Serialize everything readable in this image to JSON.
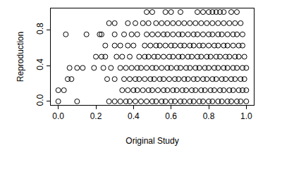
{
  "chart_data": {
    "type": "scatter",
    "x_label": "Original Study",
    "y_label": "Reproduction",
    "color": "#000000",
    "marker": "open circle",
    "grid": false,
    "xlim": [
      -0.04,
      1.04
    ],
    "ylim": [
      -0.04,
      1.04
    ],
    "xticks": [
      {
        "value": 0,
        "label": "0.0"
      },
      {
        "value": 0.2,
        "label": "0.2"
      },
      {
        "value": 0.4,
        "label": "0.4"
      },
      {
        "value": 0.6,
        "label": "0.6"
      },
      {
        "value": 0.8,
        "label": "0.8"
      },
      {
        "value": 1,
        "label": "1.0"
      }
    ],
    "yticks": [
      {
        "value": 0,
        "label": "0.0"
      },
      {
        "value": 0.4,
        "label": "0.4"
      },
      {
        "value": 0.8,
        "label": "0.8"
      }
    ],
    "x": [
      0,
      0.1,
      0.27,
      0.3,
      0.33,
      0.36,
      0.38,
      0.41,
      0.44,
      0.47,
      0.5,
      0.52,
      0.55,
      0.57,
      0.6,
      0.62,
      0.65,
      0.67,
      0.7,
      0.72,
      0.75,
      0.77,
      0.8,
      0.82,
      0.85,
      0.87,
      0.9,
      0.92,
      0.95,
      0.97,
      1.0,
      0,
      0.03,
      0.34,
      0.37,
      0.4,
      0.42,
      0.45,
      0.48,
      0.5,
      0.53,
      0.56,
      0.58,
      0.61,
      0.63,
      0.66,
      0.68,
      0.71,
      0.73,
      0.76,
      0.78,
      0.81,
      0.83,
      0.86,
      0.88,
      0.91,
      0.93,
      0.96,
      0.98,
      1.0,
      0.05,
      0.07,
      0.26,
      0.3,
      0.35,
      0.38,
      0.41,
      0.43,
      0.46,
      0.49,
      0.51,
      0.54,
      0.56,
      0.59,
      0.62,
      0.64,
      0.67,
      0.69,
      0.72,
      0.74,
      0.77,
      0.79,
      0.82,
      0.84,
      0.87,
      0.89,
      0.92,
      0.94,
      0.97,
      0.99,
      0.06,
      0.1,
      0.13,
      0.19,
      0.24,
      0.28,
      0.33,
      0.36,
      0.39,
      0.42,
      0.44,
      0.47,
      0.5,
      0.52,
      0.55,
      0.58,
      0.6,
      0.63,
      0.65,
      0.68,
      0.7,
      0.73,
      0.75,
      0.78,
      0.8,
      0.83,
      0.85,
      0.88,
      0.9,
      0.93,
      0.95,
      0.98,
      1.0,
      0.2,
      0.23,
      0.25,
      0.31,
      0.34,
      0.38,
      0.43,
      0.46,
      0.48,
      0.51,
      0.53,
      0.56,
      0.59,
      0.61,
      0.64,
      0.66,
      0.69,
      0.71,
      0.74,
      0.76,
      0.79,
      0.81,
      0.84,
      0.86,
      0.89,
      0.91,
      0.94,
      0.96,
      0.99,
      0.25,
      0.3,
      0.33,
      0.37,
      0.4,
      0.46,
      0.49,
      0.52,
      0.54,
      0.57,
      0.6,
      0.62,
      0.65,
      0.67,
      0.7,
      0.72,
      0.75,
      0.77,
      0.8,
      0.83,
      0.85,
      0.88,
      0.9,
      0.93,
      0.96,
      0.98,
      0.04,
      0.15,
      0.22,
      0.23,
      0.3,
      0.35,
      0.39,
      0.42,
      0.47,
      0.5,
      0.53,
      0.56,
      0.58,
      0.61,
      0.64,
      0.66,
      0.69,
      0.72,
      0.74,
      0.77,
      0.8,
      0.82,
      0.85,
      0.87,
      0.9,
      0.93,
      0.95,
      0.98,
      0.27,
      0.3,
      0.37,
      0.41,
      0.45,
      0.48,
      0.52,
      0.55,
      0.58,
      0.61,
      0.64,
      0.67,
      0.7,
      0.73,
      0.76,
      0.79,
      0.82,
      0.85,
      0.88,
      0.91,
      0.94,
      0.97,
      0.47,
      0.5,
      0.57,
      0.6,
      0.65,
      0.74,
      0.77,
      0.8,
      0.82,
      0.84,
      0.86,
      0.88,
      0.92,
      0.95
    ],
    "values": [
      0,
      0,
      0,
      0,
      0,
      0,
      0,
      0,
      0,
      0,
      0,
      0,
      0,
      0,
      0,
      0,
      0,
      0,
      0,
      0,
      0,
      0,
      0,
      0,
      0,
      0,
      0,
      0,
      0,
      0,
      0,
      0.125,
      0.125,
      0.125,
      0.125,
      0.125,
      0.125,
      0.125,
      0.125,
      0.125,
      0.125,
      0.125,
      0.125,
      0.125,
      0.125,
      0.125,
      0.125,
      0.125,
      0.125,
      0.125,
      0.125,
      0.125,
      0.125,
      0.125,
      0.125,
      0.125,
      0.125,
      0.125,
      0.125,
      0.125,
      0.25,
      0.25,
      0.25,
      0.25,
      0.25,
      0.25,
      0.25,
      0.25,
      0.25,
      0.25,
      0.25,
      0.25,
      0.25,
      0.25,
      0.25,
      0.25,
      0.25,
      0.25,
      0.25,
      0.25,
      0.25,
      0.25,
      0.25,
      0.25,
      0.25,
      0.25,
      0.25,
      0.25,
      0.25,
      0.25,
      0.375,
      0.375,
      0.375,
      0.375,
      0.375,
      0.375,
      0.375,
      0.375,
      0.375,
      0.375,
      0.375,
      0.375,
      0.375,
      0.375,
      0.375,
      0.375,
      0.375,
      0.375,
      0.375,
      0.375,
      0.375,
      0.375,
      0.375,
      0.375,
      0.375,
      0.375,
      0.375,
      0.375,
      0.375,
      0.375,
      0.375,
      0.375,
      0.375,
      0.5,
      0.5,
      0.5,
      0.5,
      0.5,
      0.5,
      0.5,
      0.5,
      0.5,
      0.5,
      0.5,
      0.5,
      0.5,
      0.5,
      0.5,
      0.5,
      0.5,
      0.5,
      0.5,
      0.5,
      0.5,
      0.5,
      0.5,
      0.5,
      0.5,
      0.5,
      0.5,
      0.5,
      0.5,
      0.625,
      0.625,
      0.625,
      0.625,
      0.625,
      0.625,
      0.625,
      0.625,
      0.625,
      0.625,
      0.625,
      0.625,
      0.625,
      0.625,
      0.625,
      0.625,
      0.625,
      0.625,
      0.625,
      0.625,
      0.625,
      0.625,
      0.625,
      0.625,
      0.625,
      0.625,
      0.75,
      0.75,
      0.75,
      0.75,
      0.75,
      0.75,
      0.75,
      0.75,
      0.75,
      0.75,
      0.75,
      0.75,
      0.75,
      0.75,
      0.75,
      0.75,
      0.75,
      0.75,
      0.75,
      0.75,
      0.75,
      0.75,
      0.75,
      0.75,
      0.75,
      0.75,
      0.75,
      0.75,
      0.875,
      0.875,
      0.875,
      0.875,
      0.875,
      0.875,
      0.875,
      0.875,
      0.875,
      0.875,
      0.875,
      0.875,
      0.875,
      0.875,
      0.875,
      0.875,
      0.875,
      0.875,
      0.875,
      0.875,
      0.875,
      0.875,
      1.0,
      1.0,
      1.0,
      1.0,
      1.0,
      1.0,
      1.0,
      1.0,
      1.0,
      1.0,
      1.0,
      1.0,
      1.0,
      1.0
    ]
  }
}
